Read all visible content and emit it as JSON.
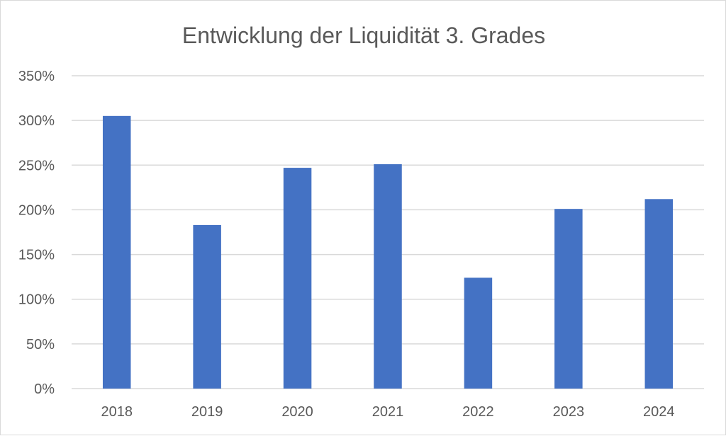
{
  "chart_data": {
    "type": "bar",
    "title": "Entwicklung der Liquidität 3. Grades",
    "xlabel": "",
    "ylabel": "",
    "categories": [
      "2018",
      "2019",
      "2020",
      "2021",
      "2022",
      "2023",
      "2024"
    ],
    "values": [
      305,
      183,
      247,
      251,
      124,
      201,
      212
    ],
    "value_unit": "%",
    "ylim": [
      0,
      350
    ],
    "yticks": [
      0,
      50,
      100,
      150,
      200,
      250,
      300,
      350
    ],
    "ytick_labels": [
      "0%",
      "50%",
      "100%",
      "150%",
      "200%",
      "250%",
      "300%",
      "350%"
    ],
    "grid": true,
    "legend": "none",
    "bar_color": "#4472C4",
    "grid_color": "#d9d9d9"
  }
}
